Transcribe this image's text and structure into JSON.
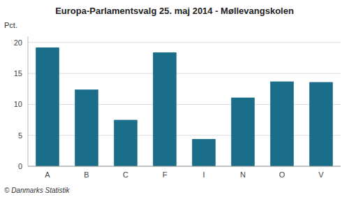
{
  "chart_data": {
    "type": "bar",
    "title": "Europa-Parlamentsvalg 25. maj 2014 - Møllevangskolen",
    "ylabel": "Pct.",
    "categories": [
      "A",
      "B",
      "C",
      "F",
      "I",
      "N",
      "O",
      "V"
    ],
    "values": [
      19.2,
      12.4,
      7.5,
      18.4,
      4.4,
      11.1,
      13.7,
      13.6
    ],
    "color": "#1a6e8a",
    "ylim": [
      0,
      21
    ],
    "yticks": [
      0,
      5,
      10,
      15,
      20
    ],
    "grid": true,
    "annotations": [
      "© Danmarks Statistik"
    ]
  }
}
